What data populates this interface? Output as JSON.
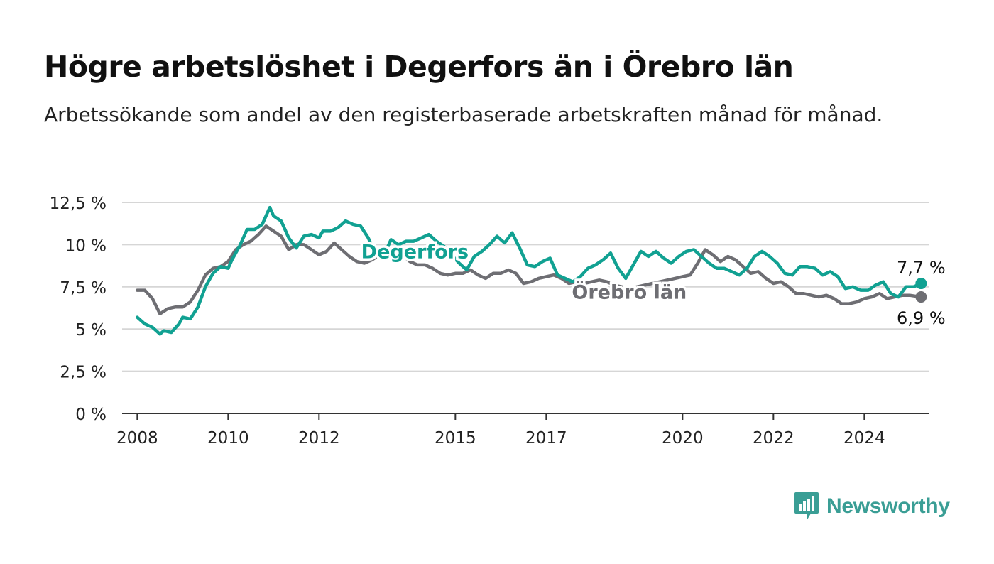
{
  "title": "Högre arbetslöshet i Degerfors än i Örebro län",
  "subtitle": "Arbetssökande som andel av den registerbaserade arbetskraften månad för månad.",
  "brand": {
    "name": "Newsworthy",
    "color": "#3a9e95"
  },
  "chart_data": {
    "type": "line",
    "title": "Högre arbetslöshet i Degerfors än i Örebro län",
    "ylim": [
      0,
      12.5
    ],
    "xlim": [
      "2007-09",
      "2025-06"
    ],
    "yticks": [
      0,
      2.5,
      5,
      7.5,
      10,
      12.5
    ],
    "ytick_labels": [
      "0 %",
      "2,5 %",
      "5 %",
      "7,5 %",
      "10 %",
      "12,5 %"
    ],
    "xticks": [
      "2008",
      "2010",
      "2012",
      "2015",
      "2017",
      "2020",
      "2022",
      "2024"
    ],
    "grid": true,
    "legend": "inline",
    "series": [
      {
        "name": "Degerfors",
        "color": "#11a192",
        "end_label": "7,7 %",
        "points": [
          [
            "2008-01",
            5.7
          ],
          [
            "2008-03",
            5.3
          ],
          [
            "2008-05",
            5.1
          ],
          [
            "2008-07",
            4.7
          ],
          [
            "2008-08",
            4.9
          ],
          [
            "2008-10",
            4.8
          ],
          [
            "2008-12",
            5.3
          ],
          [
            "2009-01",
            5.7
          ],
          [
            "2009-03",
            5.6
          ],
          [
            "2009-05",
            6.3
          ],
          [
            "2009-07",
            7.5
          ],
          [
            "2009-09",
            8.3
          ],
          [
            "2009-11",
            8.7
          ],
          [
            "2010-01",
            8.6
          ],
          [
            "2010-02",
            9.1
          ],
          [
            "2010-04",
            9.9
          ],
          [
            "2010-06",
            10.9
          ],
          [
            "2010-08",
            10.9
          ],
          [
            "2010-10",
            11.2
          ],
          [
            "2010-12",
            12.2
          ],
          [
            "2011-01",
            11.7
          ],
          [
            "2011-03",
            11.4
          ],
          [
            "2011-05",
            10.4
          ],
          [
            "2011-07",
            9.8
          ],
          [
            "2011-09",
            10.5
          ],
          [
            "2011-11",
            10.6
          ],
          [
            "2012-01",
            10.4
          ],
          [
            "2012-02",
            10.8
          ],
          [
            "2012-04",
            10.8
          ],
          [
            "2012-06",
            11.0
          ],
          [
            "2012-08",
            11.4
          ],
          [
            "2012-10",
            11.2
          ],
          [
            "2012-12",
            11.1
          ],
          [
            "2013-02",
            10.4
          ],
          [
            "2013-04",
            9.4
          ],
          [
            "2013-06",
            9.3
          ],
          [
            "2013-08",
            10.3
          ],
          [
            "2013-10",
            10.0
          ],
          [
            "2013-12",
            10.2
          ],
          [
            "2014-02",
            10.2
          ],
          [
            "2014-04",
            10.4
          ],
          [
            "2014-06",
            10.6
          ],
          [
            "2014-08",
            10.2
          ],
          [
            "2014-10",
            9.9
          ],
          [
            "2014-12",
            9.4
          ],
          [
            "2015-02",
            8.9
          ],
          [
            "2015-04",
            8.5
          ],
          [
            "2015-06",
            9.3
          ],
          [
            "2015-08",
            9.6
          ],
          [
            "2015-10",
            10.0
          ],
          [
            "2015-12",
            10.5
          ],
          [
            "2016-02",
            10.1
          ],
          [
            "2016-04",
            10.7
          ],
          [
            "2016-06",
            9.8
          ],
          [
            "2016-08",
            8.8
          ],
          [
            "2016-10",
            8.7
          ],
          [
            "2016-12",
            9.0
          ],
          [
            "2017-02",
            9.2
          ],
          [
            "2017-04",
            8.2
          ],
          [
            "2017-06",
            8.0
          ],
          [
            "2017-08",
            7.8
          ],
          [
            "2017-10",
            8.1
          ],
          [
            "2017-12",
            8.6
          ],
          [
            "2018-02",
            8.8
          ],
          [
            "2018-04",
            9.1
          ],
          [
            "2018-06",
            9.5
          ],
          [
            "2018-08",
            8.6
          ],
          [
            "2018-10",
            8.0
          ],
          [
            "2018-12",
            8.8
          ],
          [
            "2019-02",
            9.6
          ],
          [
            "2019-04",
            9.3
          ],
          [
            "2019-06",
            9.6
          ],
          [
            "2019-08",
            9.2
          ],
          [
            "2019-10",
            8.9
          ],
          [
            "2019-12",
            9.3
          ],
          [
            "2020-02",
            9.6
          ],
          [
            "2020-04",
            9.7
          ],
          [
            "2020-06",
            9.3
          ],
          [
            "2020-08",
            8.9
          ],
          [
            "2020-10",
            8.6
          ],
          [
            "2020-12",
            8.6
          ],
          [
            "2021-02",
            8.4
          ],
          [
            "2021-04",
            8.2
          ],
          [
            "2021-06",
            8.6
          ],
          [
            "2021-08",
            9.3
          ],
          [
            "2021-10",
            9.6
          ],
          [
            "2021-12",
            9.3
          ],
          [
            "2022-02",
            8.9
          ],
          [
            "2022-04",
            8.3
          ],
          [
            "2022-06",
            8.2
          ],
          [
            "2022-08",
            8.7
          ],
          [
            "2022-10",
            8.7
          ],
          [
            "2022-12",
            8.6
          ],
          [
            "2023-02",
            8.2
          ],
          [
            "2023-04",
            8.4
          ],
          [
            "2023-06",
            8.1
          ],
          [
            "2023-08",
            7.4
          ],
          [
            "2023-10",
            7.5
          ],
          [
            "2023-12",
            7.3
          ],
          [
            "2024-02",
            7.3
          ],
          [
            "2024-04",
            7.6
          ],
          [
            "2024-06",
            7.8
          ],
          [
            "2024-08",
            7.1
          ],
          [
            "2024-10",
            6.9
          ],
          [
            "2024-12",
            7.5
          ],
          [
            "2025-02",
            7.5
          ],
          [
            "2025-04",
            7.7
          ]
        ]
      },
      {
        "name": "Örebro län",
        "color": "#6e6e73",
        "end_label": "6,9 %",
        "points": [
          [
            "2008-01",
            7.3
          ],
          [
            "2008-03",
            7.3
          ],
          [
            "2008-05",
            6.8
          ],
          [
            "2008-07",
            5.9
          ],
          [
            "2008-09",
            6.2
          ],
          [
            "2008-11",
            6.3
          ],
          [
            "2009-01",
            6.3
          ],
          [
            "2009-03",
            6.6
          ],
          [
            "2009-05",
            7.3
          ],
          [
            "2009-07",
            8.2
          ],
          [
            "2009-09",
            8.6
          ],
          [
            "2009-11",
            8.7
          ],
          [
            "2010-01",
            9.0
          ],
          [
            "2010-03",
            9.7
          ],
          [
            "2010-05",
            10.0
          ],
          [
            "2010-07",
            10.2
          ],
          [
            "2010-09",
            10.6
          ],
          [
            "2010-11",
            11.1
          ],
          [
            "2011-01",
            10.8
          ],
          [
            "2011-03",
            10.5
          ],
          [
            "2011-05",
            9.7
          ],
          [
            "2011-07",
            10.0
          ],
          [
            "2011-09",
            10.0
          ],
          [
            "2011-11",
            9.7
          ],
          [
            "2012-01",
            9.4
          ],
          [
            "2012-03",
            9.6
          ],
          [
            "2012-05",
            10.1
          ],
          [
            "2012-07",
            9.7
          ],
          [
            "2012-09",
            9.3
          ],
          [
            "2012-11",
            9.0
          ],
          [
            "2013-01",
            8.9
          ],
          [
            "2013-03",
            9.1
          ],
          [
            "2013-05",
            9.4
          ],
          [
            "2013-07",
            9.7
          ],
          [
            "2013-09",
            9.7
          ],
          [
            "2013-11",
            9.4
          ],
          [
            "2014-01",
            9.0
          ],
          [
            "2014-03",
            8.8
          ],
          [
            "2014-05",
            8.8
          ],
          [
            "2014-07",
            8.6
          ],
          [
            "2014-09",
            8.3
          ],
          [
            "2014-11",
            8.2
          ],
          [
            "2015-01",
            8.3
          ],
          [
            "2015-03",
            8.3
          ],
          [
            "2015-05",
            8.5
          ],
          [
            "2015-07",
            8.2
          ],
          [
            "2015-09",
            8.0
          ],
          [
            "2015-11",
            8.3
          ],
          [
            "2016-01",
            8.3
          ],
          [
            "2016-03",
            8.5
          ],
          [
            "2016-05",
            8.3
          ],
          [
            "2016-07",
            7.7
          ],
          [
            "2016-09",
            7.8
          ],
          [
            "2016-11",
            8.0
          ],
          [
            "2017-01",
            8.1
          ],
          [
            "2017-03",
            8.2
          ],
          [
            "2017-05",
            8.0
          ],
          [
            "2017-07",
            7.7
          ],
          [
            "2017-09",
            7.8
          ],
          [
            "2017-11",
            7.7
          ],
          [
            "2018-01",
            7.8
          ],
          [
            "2018-03",
            7.9
          ],
          [
            "2018-05",
            7.8
          ],
          [
            "2018-07",
            7.6
          ],
          [
            "2018-09",
            7.5
          ],
          [
            "2018-11",
            7.4
          ],
          [
            "2019-01",
            7.5
          ],
          [
            "2019-03",
            7.6
          ],
          [
            "2019-05",
            7.7
          ],
          [
            "2019-07",
            7.8
          ],
          [
            "2019-09",
            7.9
          ],
          [
            "2019-11",
            8.0
          ],
          [
            "2020-01",
            8.1
          ],
          [
            "2020-03",
            8.2
          ],
          [
            "2020-05",
            8.9
          ],
          [
            "2020-07",
            9.7
          ],
          [
            "2020-09",
            9.4
          ],
          [
            "2020-11",
            9.0
          ],
          [
            "2021-01",
            9.3
          ],
          [
            "2021-03",
            9.1
          ],
          [
            "2021-05",
            8.7
          ],
          [
            "2021-07",
            8.3
          ],
          [
            "2021-09",
            8.4
          ],
          [
            "2021-11",
            8.0
          ],
          [
            "2022-01",
            7.7
          ],
          [
            "2022-03",
            7.8
          ],
          [
            "2022-05",
            7.5
          ],
          [
            "2022-07",
            7.1
          ],
          [
            "2022-09",
            7.1
          ],
          [
            "2022-11",
            7.0
          ],
          [
            "2023-01",
            6.9
          ],
          [
            "2023-03",
            7.0
          ],
          [
            "2023-05",
            6.8
          ],
          [
            "2023-07",
            6.5
          ],
          [
            "2023-09",
            6.5
          ],
          [
            "2023-11",
            6.6
          ],
          [
            "2024-01",
            6.8
          ],
          [
            "2024-03",
            6.9
          ],
          [
            "2024-05",
            7.1
          ],
          [
            "2024-07",
            6.8
          ],
          [
            "2024-09",
            6.9
          ],
          [
            "2024-11",
            7.0
          ],
          [
            "2025-01",
            7.0
          ],
          [
            "2025-04",
            6.9
          ]
        ]
      }
    ]
  }
}
